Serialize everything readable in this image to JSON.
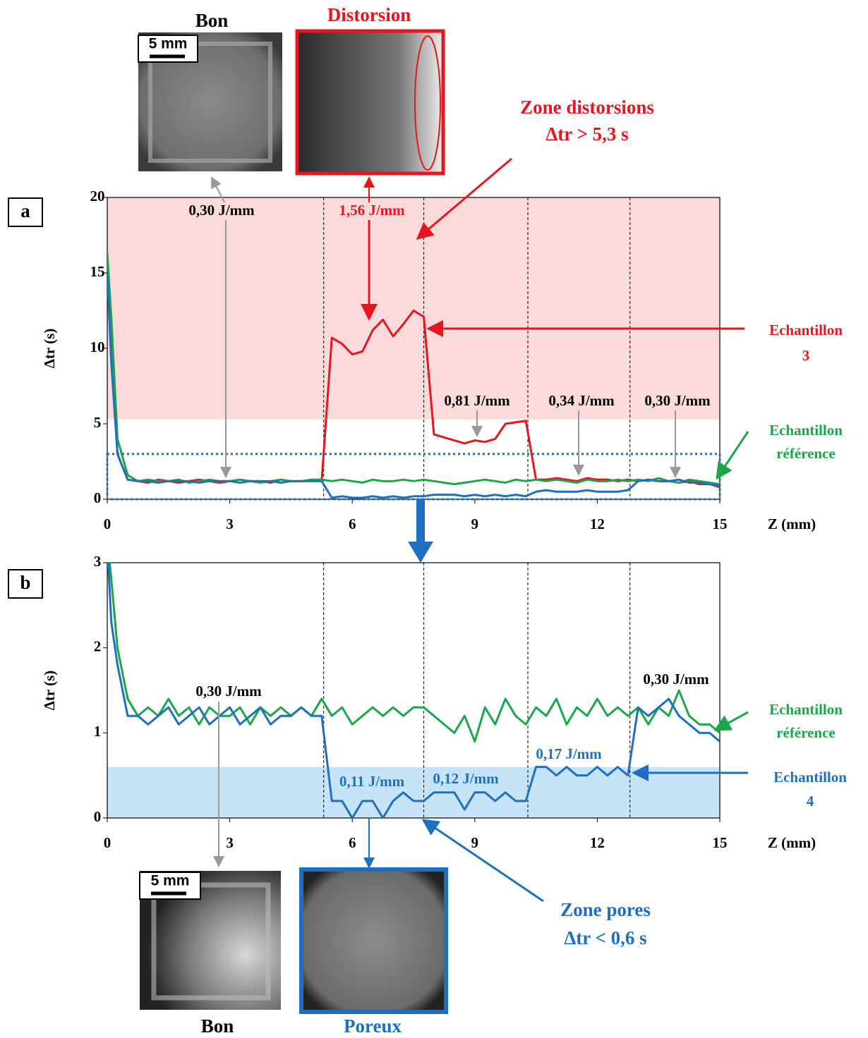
{
  "images": [
    {
      "caption": "Bon",
      "scale": "5 mm"
    },
    {
      "caption": "Distorsion"
    },
    {
      "caption": "Bon",
      "scale": "5 mm"
    },
    {
      "caption": "Poreux"
    }
  ],
  "chart_data": [
    {
      "type": "line",
      "panel": "a",
      "x_label": "Z (mm)",
      "y_label": "Δtr (s)",
      "xlim": [
        0,
        15
      ],
      "xticks": [
        0,
        3,
        6,
        9,
        12,
        15
      ],
      "ylim": [
        0,
        20
      ],
      "yticks": [
        0,
        5,
        10,
        15,
        20
      ],
      "dividers": [
        5.3,
        7.75,
        10.3,
        12.8
      ],
      "band": [
        5.3,
        20
      ],
      "band_color": "#fadada",
      "x": [
        0,
        0.1,
        0.25,
        0.5,
        0.75,
        1,
        1.25,
        1.5,
        1.75,
        2,
        2.25,
        2.5,
        2.75,
        3,
        3.25,
        3.5,
        3.75,
        4,
        4.25,
        4.5,
        4.75,
        5,
        5.25,
        5.5,
        5.75,
        6,
        6.25,
        6.5,
        6.75,
        7,
        7.25,
        7.5,
        7.75,
        8,
        8.25,
        8.5,
        8.75,
        9,
        9.25,
        9.5,
        9.75,
        10,
        10.25,
        10.5,
        10.75,
        11,
        11.25,
        11.5,
        11.75,
        12,
        12.25,
        12.5,
        12.75,
        13,
        13.25,
        13.5,
        13.75,
        14,
        14.25,
        14.5,
        14.75,
        15
      ],
      "series": [
        {
          "name": "Echantillon 3",
          "color": "#e8141e",
          "values": [
            16.3,
            10,
            3,
            1.3,
            1.2,
            1.1,
            1.3,
            1.2,
            1.1,
            1.2,
            1.3,
            1.2,
            1.1,
            1.2,
            1.3,
            1.2,
            1.2,
            1.1,
            1.3,
            1.2,
            1.2,
            1.3,
            1.2,
            10.7,
            10.3,
            9.6,
            9.8,
            11.2,
            11.9,
            10.8,
            11.6,
            12.5,
            12.1,
            4.3,
            4.1,
            3.9,
            3.7,
            3.9,
            3.8,
            4.0,
            5.0,
            5.1,
            5.2,
            1.3,
            1.3,
            1.4,
            1.3,
            1.2,
            1.4,
            1.3,
            1.3,
            1.2,
            1.3,
            1.2,
            1.3,
            1.2,
            1.2,
            1.1,
            1.2,
            1.0,
            1.0,
            0.8
          ]
        },
        {
          "name": "Echantillon référence",
          "color": "#1aa64a",
          "values": [
            16.3,
            12,
            4,
            1.6,
            1.2,
            1.3,
            1.2,
            1.2,
            1.3,
            1.1,
            1.2,
            1.3,
            1.2,
            1.2,
            1.3,
            1.2,
            1.1,
            1.2,
            1.3,
            1.2,
            1.2,
            1.3,
            1.3,
            1.2,
            1.3,
            1.2,
            1.1,
            1.3,
            1.2,
            1.2,
            1.3,
            1.2,
            1.3,
            1.2,
            1.1,
            1.0,
            1.1,
            1.2,
            1.3,
            1.2,
            1.1,
            1.3,
            1.2,
            1.3,
            1.2,
            1.3,
            1.2,
            1.1,
            1.3,
            1.2,
            1.2,
            1.3,
            1.2,
            1.3,
            1.2,
            1.4,
            1.2,
            1.1,
            1.3,
            1.2,
            1.1,
            1.0
          ]
        },
        {
          "name": "Echantillon 4",
          "color": "#1f6fc0",
          "values": [
            15,
            9,
            3,
            1.3,
            1.2,
            1.2,
            1.1,
            1.2,
            1.2,
            1.2,
            1.1,
            1.2,
            1.2,
            1.2,
            1.1,
            1.2,
            1.2,
            1.2,
            1.1,
            1.2,
            1.2,
            1.2,
            1.2,
            0.1,
            0.2,
            0.1,
            0.1,
            0.2,
            0.1,
            0.2,
            0.1,
            0.2,
            0.2,
            0.3,
            0.3,
            0.3,
            0.2,
            0.3,
            0.2,
            0.3,
            0.2,
            0.3,
            0.2,
            0.5,
            0.6,
            0.5,
            0.5,
            0.5,
            0.6,
            0.5,
            0.5,
            0.5,
            0.6,
            1.2,
            1.3,
            1.2,
            1.2,
            1.3,
            1.1,
            1.1,
            1.0,
            0.9
          ]
        }
      ],
      "annotations": [
        "0,30 J/mm",
        "1,56 J/mm",
        "Zone distorsions",
        "Δtr > 5,3 s",
        "0,81 J/mm",
        "0,34 J/mm",
        "0,30 J/mm",
        "Echantillon",
        "3",
        "Echantillon",
        "référence"
      ]
    },
    {
      "type": "line",
      "panel": "b",
      "x_label": "Z (mm)",
      "y_label": "Δtr (s)",
      "xlim": [
        0,
        15
      ],
      "xticks": [
        0,
        3,
        6,
        9,
        12,
        15
      ],
      "ylim": [
        0,
        3
      ],
      "yticks": [
        0,
        1,
        2,
        3
      ],
      "dividers": [
        5.3,
        7.75,
        10.3,
        12.8
      ],
      "band": [
        0,
        0.6
      ],
      "band_color": "#c7e3f8",
      "x": [
        0,
        0.1,
        0.25,
        0.5,
        0.75,
        1,
        1.25,
        1.5,
        1.75,
        2,
        2.25,
        2.5,
        2.75,
        3,
        3.25,
        3.5,
        3.75,
        4,
        4.25,
        4.5,
        4.75,
        5,
        5.25,
        5.5,
        5.75,
        6,
        6.25,
        6.5,
        6.75,
        7,
        7.25,
        7.5,
        7.75,
        8,
        8.25,
        8.5,
        8.75,
        9,
        9.25,
        9.5,
        9.75,
        10,
        10.25,
        10.5,
        10.75,
        11,
        11.25,
        11.5,
        11.75,
        12,
        12.25,
        12.5,
        12.75,
        13,
        13.25,
        13.5,
        13.75,
        14,
        14.25,
        14.5,
        14.75,
        15
      ],
      "series": [
        {
          "name": "Echantillon référence",
          "color": "#1aa64a",
          "values": [
            3.3,
            2.8,
            2.0,
            1.4,
            1.2,
            1.3,
            1.2,
            1.4,
            1.2,
            1.3,
            1.1,
            1.3,
            1.2,
            1.2,
            1.3,
            1.1,
            1.3,
            1.2,
            1.3,
            1.2,
            1.3,
            1.2,
            1.4,
            1.2,
            1.3,
            1.1,
            1.2,
            1.3,
            1.2,
            1.3,
            1.2,
            1.3,
            1.3,
            1.2,
            1.1,
            1.0,
            1.2,
            0.9,
            1.3,
            1.1,
            1.4,
            1.2,
            1.1,
            1.3,
            1.2,
            1.4,
            1.1,
            1.3,
            1.2,
            1.4,
            1.2,
            1.3,
            1.2,
            1.3,
            1.1,
            1.3,
            1.2,
            1.5,
            1.2,
            1.1,
            1.1,
            1.0
          ]
        },
        {
          "name": "Echantillon 4",
          "color": "#1f6fc0",
          "values": [
            3.2,
            2.3,
            1.8,
            1.2,
            1.2,
            1.1,
            1.2,
            1.3,
            1.1,
            1.2,
            1.3,
            1.1,
            1.2,
            1.3,
            1.1,
            1.2,
            1.3,
            1.1,
            1.2,
            1.2,
            1.3,
            1.2,
            1.2,
            0.2,
            0.2,
            0,
            0.2,
            0.2,
            0,
            0.2,
            0.3,
            0.2,
            0.2,
            0.3,
            0.3,
            0.3,
            0.1,
            0.3,
            0.3,
            0.2,
            0.3,
            0.2,
            0.2,
            0.6,
            0.6,
            0.5,
            0.6,
            0.5,
            0.5,
            0.6,
            0.5,
            0.6,
            0.5,
            1.3,
            1.2,
            1.3,
            1.4,
            1.2,
            1.1,
            1.0,
            1.0,
            0.9
          ]
        }
      ],
      "annotations": [
        "0,30 J/mm",
        "0,11 J/mm",
        "0,12 J/mm",
        "0,17 J/mm",
        "0,30 J/mm",
        "Zone pores",
        "Δtr < 0,6 s",
        "Echantillon",
        "référence",
        "Echantillon",
        "4"
      ]
    }
  ]
}
